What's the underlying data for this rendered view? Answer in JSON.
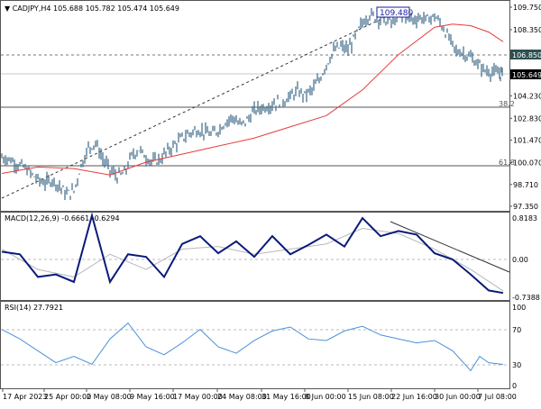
{
  "header": {
    "symbol": "CADJPY,H4",
    "ohlc": "105.688 105.782 105.474 105.649",
    "title_full": "CADJPY,H4  105.688 105.782 105.474 105.649"
  },
  "colors": {
    "candle": "#4a7390",
    "ma": "#e83a3a",
    "macd_main": "#0a1a7a",
    "macd_signal": "#b8b8b8",
    "rsi": "#4a90d9",
    "grid": "#aaaaaa",
    "frame": "#555555",
    "price_label_bg": "#000000",
    "level_label_bg": "#2f4f4f",
    "high_label_border": "#1a1aa0"
  },
  "main_panel": {
    "price_axis": [
      "109.750",
      "108.350",
      "106.850",
      "105.649",
      "104.230",
      "102.830",
      "101.470",
      "100.070",
      "98.710",
      "97.350"
    ],
    "current_price_label": "105.649",
    "level_label": "106.850",
    "high_label": "109.480",
    "fib_labels": [
      "38.2",
      "61.8"
    ]
  },
  "macd_panel": {
    "label": "MACD(12,26,9) -0.6661 -0.6294",
    "axis": [
      "0.8183",
      "0.00",
      "-0.7388"
    ]
  },
  "rsi_panel": {
    "label": "RSI(14) 27.7921",
    "axis": [
      "100",
      "70",
      "30",
      "0"
    ]
  },
  "time_axis": [
    "17 Apr 2023",
    "25 Apr 00:00",
    "2 May 08:00",
    "9 May 16:00",
    "17 May 00:00",
    "24 May 08:00",
    "31 May 16:00",
    "8 Jun 00:00",
    "15 Jun 08:00",
    "22 Jun 16:00",
    "30 Jun 00:00",
    "7 Jul 08:00"
  ],
  "chart_data": [
    {
      "type": "line",
      "title": "CADJPY,H4",
      "subtitle": "105.688 105.782 105.474 105.649",
      "xlabel": "",
      "ylabel": "",
      "ylim": [
        96.9,
        110.4
      ],
      "categories": [
        "17 Apr 2023",
        "25 Apr 00:00",
        "2 May 08:00",
        "9 May 16:00",
        "17 May 00:00",
        "24 May 08:00",
        "31 May 16:00",
        "8 Jun 00:00",
        "15 Jun 08:00",
        "22 Jun 16:00",
        "30 Jun 00:00",
        "7 Jul 08:00"
      ],
      "series": [
        {
          "name": "CADJPY close",
          "x": [
            0,
            4,
            8,
            12,
            16,
            20,
            24,
            28,
            32,
            36,
            40,
            44,
            48,
            52,
            56,
            60,
            64,
            68,
            72,
            76,
            80,
            84,
            88,
            92,
            96,
            100,
            104,
            108,
            112,
            116,
            120,
            124,
            128,
            132,
            136,
            140,
            144,
            148,
            152,
            156,
            160,
            164,
            168,
            172,
            176,
            180,
            184,
            188,
            192,
            196,
            200,
            204,
            208,
            212,
            216,
            220,
            224,
            228,
            232,
            236,
            240,
            244,
            248,
            252,
            256,
            260,
            264,
            268,
            272,
            276,
            278
          ],
          "values": [
            100.4,
            100.3,
            100.0,
            99.8,
            99.4,
            99.0,
            98.8,
            99.0,
            98.6,
            98.1,
            98.3,
            99.9,
            101.0,
            101.3,
            100.3,
            99.6,
            99.2,
            99.4,
            100.5,
            100.9,
            100.4,
            100.1,
            100.3,
            100.8,
            101.2,
            101.6,
            101.9,
            102.1,
            102.0,
            101.8,
            102.1,
            102.6,
            102.9,
            102.4,
            102.7,
            103.3,
            103.5,
            103.6,
            103.8,
            103.9,
            104.2,
            104.5,
            104.3,
            104.6,
            105.2,
            106.2,
            107.0,
            107.3,
            107.1,
            107.9,
            108.8,
            109.3,
            109.1,
            108.9,
            108.8,
            109.1,
            109.2,
            109.0,
            109.1,
            109.0,
            109.2,
            108.6,
            107.8,
            107.0,
            106.9,
            106.6,
            106.2,
            105.8,
            105.7,
            105.6,
            105.649
          ]
        },
        {
          "name": "Moving Average",
          "x": [
            0,
            20,
            40,
            60,
            80,
            100,
            120,
            140,
            160,
            180,
            200,
            220,
            240,
            250,
            260,
            270,
            278
          ],
          "values": [
            99.4,
            99.8,
            99.7,
            99.3,
            100.1,
            100.6,
            101.1,
            101.6,
            102.3,
            103.0,
            104.6,
            106.8,
            108.5,
            108.7,
            108.6,
            108.2,
            107.6
          ]
        }
      ],
      "annotations": [
        "high 109.480",
        "level 106.850",
        "Fib 38.2 at ~103.9",
        "Fib 61.8 at ~100.07",
        "rising dashed trendline"
      ]
    },
    {
      "type": "line",
      "title": "MACD(12,26,9) -0.6661 -0.6294",
      "ylim": [
        -0.8,
        0.9
      ],
      "series": [
        {
          "name": "MACD",
          "x": [
            0,
            10,
            20,
            30,
            40,
            50,
            60,
            70,
            80,
            90,
            100,
            110,
            120,
            130,
            140,
            150,
            160,
            170,
            180,
            190,
            200,
            210,
            220,
            230,
            240,
            250,
            260,
            270,
            278
          ],
          "values": [
            0.15,
            0.1,
            -0.35,
            -0.3,
            -0.45,
            0.85,
            -0.45,
            0.1,
            0.05,
            -0.35,
            0.3,
            0.45,
            0.12,
            0.35,
            0.05,
            0.45,
            0.1,
            0.28,
            0.48,
            0.25,
            0.8,
            0.45,
            0.55,
            0.48,
            0.12,
            0.0,
            -0.3,
            -0.62,
            -0.67
          ]
        },
        {
          "name": "Signal",
          "x": [
            0,
            20,
            40,
            60,
            80,
            100,
            120,
            140,
            160,
            180,
            200,
            220,
            240,
            260,
            278
          ],
          "values": [
            0.2,
            -0.2,
            -0.35,
            0.1,
            -0.2,
            0.2,
            0.25,
            0.1,
            0.2,
            0.3,
            0.6,
            0.5,
            0.2,
            -0.2,
            -0.63
          ]
        }
      ]
    },
    {
      "type": "line",
      "title": "RSI(14) 27.7921",
      "ylim": [
        0,
        100
      ],
      "series": [
        {
          "name": "RSI(14)",
          "x": [
            0,
            10,
            20,
            30,
            40,
            50,
            60,
            70,
            80,
            90,
            100,
            110,
            120,
            130,
            140,
            150,
            160,
            170,
            180,
            190,
            200,
            210,
            220,
            230,
            240,
            250,
            260,
            265,
            270,
            278
          ],
          "values": [
            72,
            60,
            45,
            30,
            38,
            28,
            60,
            80,
            50,
            40,
            55,
            72,
            50,
            42,
            58,
            70,
            75,
            60,
            58,
            70,
            76,
            65,
            60,
            55,
            58,
            45,
            20,
            38,
            30,
            27.8
          ]
        }
      ],
      "levels": [
        70,
        30
      ]
    }
  ]
}
